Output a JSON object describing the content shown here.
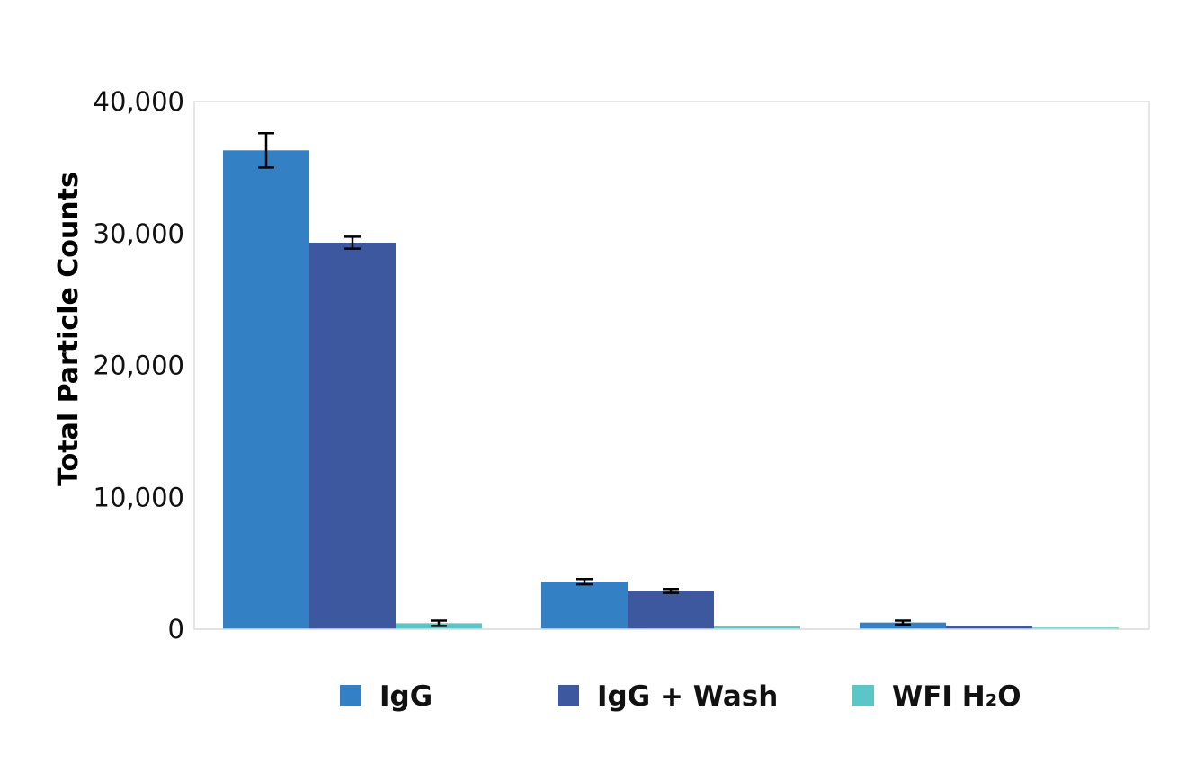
{
  "chart_data": {
    "type": "bar",
    "title": "",
    "xlabel": "",
    "ylabel": "Total Particle Counts",
    "ylim": [
      0,
      40000
    ],
    "yticks": [
      0,
      10000,
      20000,
      30000,
      40000
    ],
    "ytick_labels": [
      "0",
      "10,000",
      "20,000",
      "30,000",
      "40,000"
    ],
    "grid": false,
    "legend_position": "bottom",
    "categories": [
      "",
      "",
      ""
    ],
    "series": [
      {
        "name": "IgG",
        "color": "#3381c4",
        "values": [
          36300,
          3600,
          500
        ],
        "errors": [
          1300,
          200,
          150
        ]
      },
      {
        "name": "IgG + Wash",
        "color": "#3d589f",
        "values": [
          29300,
          2900,
          250
        ],
        "errors": [
          450,
          150,
          0
        ]
      },
      {
        "name": "WFI H₂O",
        "color": "#5bc6c8",
        "values": [
          450,
          200,
          120
        ],
        "errors": [
          200,
          0,
          0
        ]
      }
    ]
  }
}
